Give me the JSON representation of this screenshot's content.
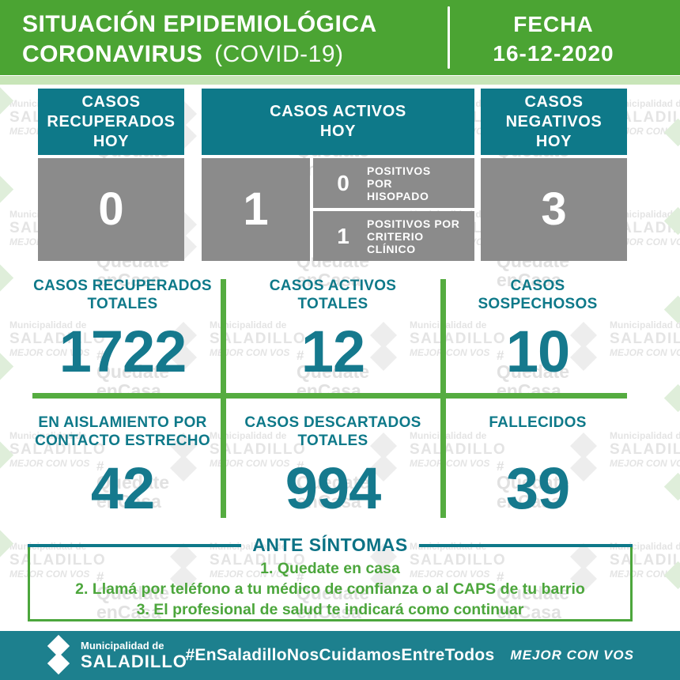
{
  "header": {
    "title_line1": "SITUACIÓN EPIDEMIOLÓGICA",
    "title_line2_bold": "CORONAVIRUS",
    "title_line2_light": "(COVID-19)",
    "fecha_label": "FECHA",
    "fecha_value": "16-12-2020"
  },
  "today": {
    "recuperados": {
      "label": "CASOS RECUPERADOS HOY",
      "value": "0"
    },
    "activos": {
      "label": "CASOS ACTIVOS HOY",
      "value": "1",
      "breakdown": [
        {
          "value": "0",
          "label": "POSITIVOS POR HISOPADO"
        },
        {
          "value": "1",
          "label": "POSITIVOS POR CRITERIO CLÍNICO"
        }
      ]
    },
    "negativos": {
      "label": "CASOS NEGATIVOS HOY",
      "value": "3"
    }
  },
  "totals": [
    {
      "label": "CASOS RECUPERADOS TOTALES",
      "value": "1722"
    },
    {
      "label": "CASOS ACTIVOS TOTALES",
      "value": "12"
    },
    {
      "label": "CASOS SOSPECHOSOS",
      "value": "10"
    },
    {
      "label": "EN AISLAMIENTO POR CONTACTO ESTRECHO",
      "value": "42"
    },
    {
      "label": "CASOS DESCARTADOS TOTALES",
      "value": "994"
    },
    {
      "label": "FALLECIDOS",
      "value": "39"
    }
  ],
  "symptoms": {
    "title": "ANTE SÍNTOMAS",
    "items": [
      "1. Quedate en casa",
      "2. Llamá por teléfono a tu médico de confianza o al CAPS de tu barrio",
      "3. El profesional de salud te indicará como continuar"
    ]
  },
  "footer": {
    "logo_line1": "Municipalidad de",
    "logo_line2": "SALADILLO",
    "hashtag": "#EnSaladilloNosCuidamosEntreTodos",
    "slogan": "MEJOR CON VOS"
  },
  "watermark": {
    "muni": [
      "Municipalidad de",
      "SALADILLO",
      "MEJOR CON VOS"
    ],
    "quedate": [
      "#",
      "Quedate",
      "enCasa"
    ]
  },
  "colors": {
    "header_green": "#4BA433",
    "light_green_strip": "#C8E5B8",
    "teal_box": "#0E7989",
    "gray_box": "#8B8B8B",
    "number_teal": "#15798D",
    "line_green": "#55AC40",
    "item_green": "#4CA63C",
    "footer_teal": "#1D808E"
  },
  "chart_data": {
    "type": "table",
    "title": "SITUACIÓN EPIDEMIOLÓGICA CORONAVIRUS (COVID-19)",
    "date": "16-12-2020",
    "rows": [
      {
        "label": "Casos recuperados hoy",
        "value": 0
      },
      {
        "label": "Casos activos hoy",
        "value": 1
      },
      {
        "label": "Positivos por hisopado (hoy)",
        "value": 0
      },
      {
        "label": "Positivos por criterio clínico (hoy)",
        "value": 1
      },
      {
        "label": "Casos negativos hoy",
        "value": 3
      },
      {
        "label": "Casos recuperados totales",
        "value": 1722
      },
      {
        "label": "Casos activos totales",
        "value": 12
      },
      {
        "label": "Casos sospechosos",
        "value": 10
      },
      {
        "label": "En aislamiento por contacto estrecho",
        "value": 42
      },
      {
        "label": "Casos descartados totales",
        "value": 994
      },
      {
        "label": "Fallecidos",
        "value": 39
      }
    ]
  }
}
